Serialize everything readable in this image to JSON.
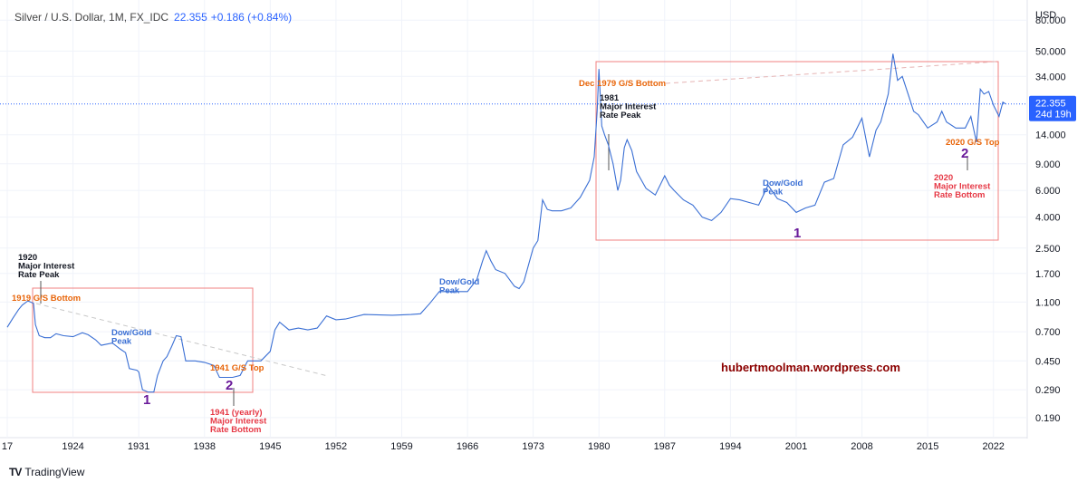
{
  "header": {
    "symbol": "Silver / U.S. Dollar, 1M, FX_IDC",
    "price": "22.355",
    "change": "+0.186 (+0.84%)"
  },
  "footer": {
    "brand": "TradingView",
    "logo": "TV"
  },
  "axis": {
    "currency": "USD",
    "price_box": "22.355",
    "countdown": "24d 19h"
  },
  "watermark": "hubertmoolman.wordpress.com",
  "colors": {
    "line": "#3a6fd4",
    "orange": "#e8650a",
    "red": "#e63946",
    "purple": "#6a1b9a",
    "box": "#f08080",
    "watermark": "#8b0000",
    "price_box": "#2962ff"
  },
  "annotations": {
    "a1920": "1920 Major Interest Rate Peak",
    "a1919": "1919 G/S Bottom",
    "dow1": "Dow/Gold Peak",
    "a1941top": "1941 G/S Top",
    "a1941": "1941 (yearly) Major Interest Rate Bottom",
    "num1a": "1",
    "num2a": "2",
    "dow2": "Dow/Gold Peak",
    "dec1979": "Dec 1979 G/S Bottom",
    "a1981": "1981 Major Interest Rate Peak",
    "dow3": "Dow/Gold Peak",
    "num1b": "1",
    "a2020top": "2020 G/S Top",
    "num2b": "2",
    "a2020": "2020 Major Interest Rate Bottom"
  },
  "chart_data": {
    "type": "line",
    "title": "Silver / U.S. Dollar, 1M, FX_IDC",
    "xlabel": "",
    "ylabel": "USD",
    "scale": "log",
    "xlim": [
      1917,
      2026
    ],
    "ylim": [
      0.15,
      100
    ],
    "x_ticks": [
      "17",
      "1924",
      "1931",
      "1938",
      "1945",
      "1952",
      "1959",
      "1966",
      "1973",
      "1980",
      "1987",
      "1994",
      "2001",
      "2008",
      "2015",
      "2022"
    ],
    "x_tick_years": [
      1917,
      1924,
      1931,
      1938,
      1945,
      1952,
      1959,
      1966,
      1973,
      1980,
      1987,
      1994,
      2001,
      2008,
      2015,
      2022
    ],
    "y_ticks": [
      "80.000",
      "50.000",
      "34.000",
      "22.355",
      "14.000",
      "9.000",
      "6.000",
      "4.000",
      "2.500",
      "1.700",
      "1.100",
      "0.700",
      "0.450",
      "0.290",
      "0.190"
    ],
    "y_tick_values": [
      80,
      50,
      34,
      22.355,
      14,
      9,
      6,
      4,
      2.5,
      1.7,
      1.1,
      0.7,
      0.45,
      0.29,
      0.19
    ],
    "grid": true,
    "last_price": 22.355,
    "series": [
      {
        "values": [
          [
            1917.0,
            0.75
          ],
          [
            1917.6,
            0.86
          ],
          [
            1918.2,
            0.98
          ],
          [
            1918.6,
            1.05
          ],
          [
            1919.2,
            1.12
          ],
          [
            1919.8,
            1.08
          ],
          [
            1920.0,
            0.78
          ],
          [
            1920.4,
            0.66
          ],
          [
            1921.0,
            0.64
          ],
          [
            1921.6,
            0.64
          ],
          [
            1922.2,
            0.68
          ],
          [
            1923.0,
            0.66
          ],
          [
            1924.0,
            0.65
          ],
          [
            1925.0,
            0.69
          ],
          [
            1925.6,
            0.67
          ],
          [
            1926.4,
            0.62
          ],
          [
            1927.0,
            0.57
          ],
          [
            1927.6,
            0.58
          ],
          [
            1928.2,
            0.59
          ],
          [
            1929.0,
            0.54
          ],
          [
            1929.6,
            0.51
          ],
          [
            1930.0,
            0.4
          ],
          [
            1930.8,
            0.39
          ],
          [
            1931.0,
            0.38
          ],
          [
            1931.4,
            0.29
          ],
          [
            1932.0,
            0.28
          ],
          [
            1932.6,
            0.28
          ],
          [
            1933.0,
            0.36
          ],
          [
            1933.6,
            0.45
          ],
          [
            1934.0,
            0.48
          ],
          [
            1934.5,
            0.56
          ],
          [
            1935.0,
            0.66
          ],
          [
            1935.5,
            0.65
          ],
          [
            1936.0,
            0.45
          ],
          [
            1937.0,
            0.45
          ],
          [
            1938.0,
            0.44
          ],
          [
            1939.0,
            0.42
          ],
          [
            1939.6,
            0.35
          ],
          [
            1940.0,
            0.35
          ],
          [
            1941.0,
            0.35
          ],
          [
            1941.8,
            0.36
          ],
          [
            1942.6,
            0.45
          ],
          [
            1943.0,
            0.45
          ],
          [
            1944.0,
            0.45
          ],
          [
            1945.0,
            0.52
          ],
          [
            1945.5,
            0.72
          ],
          [
            1946.0,
            0.81
          ],
          [
            1947.0,
            0.72
          ],
          [
            1948.0,
            0.74
          ],
          [
            1949.0,
            0.72
          ],
          [
            1950.0,
            0.74
          ],
          [
            1951.0,
            0.89
          ],
          [
            1952.0,
            0.84
          ],
          [
            1953.0,
            0.85
          ],
          [
            1955.0,
            0.91
          ],
          [
            1958.0,
            0.9
          ],
          [
            1960.0,
            0.91
          ],
          [
            1961.0,
            0.92
          ],
          [
            1962.0,
            1.08
          ],
          [
            1963.0,
            1.29
          ],
          [
            1964.0,
            1.29
          ],
          [
            1966.0,
            1.29
          ],
          [
            1967.0,
            1.55
          ],
          [
            1967.6,
            2.05
          ],
          [
            1968.0,
            2.4
          ],
          [
            1968.5,
            2.05
          ],
          [
            1969.0,
            1.8
          ],
          [
            1970.0,
            1.7
          ],
          [
            1971.0,
            1.4
          ],
          [
            1971.5,
            1.35
          ],
          [
            1972.0,
            1.5
          ],
          [
            1973.0,
            2.5
          ],
          [
            1973.5,
            2.8
          ],
          [
            1974.0,
            5.2
          ],
          [
            1974.5,
            4.5
          ],
          [
            1975.0,
            4.4
          ],
          [
            1976.0,
            4.4
          ],
          [
            1977.0,
            4.6
          ],
          [
            1978.0,
            5.4
          ],
          [
            1979.0,
            7.0
          ],
          [
            1979.5,
            10.0
          ],
          [
            1979.8,
            20.0
          ],
          [
            1980.0,
            38.0
          ],
          [
            1980.3,
            16.0
          ],
          [
            1980.6,
            14.0
          ],
          [
            1981.0,
            12.0
          ],
          [
            1981.5,
            9.0
          ],
          [
            1982.0,
            6.0
          ],
          [
            1982.3,
            7.0
          ],
          [
            1982.7,
            11.5
          ],
          [
            1983.0,
            13.0
          ],
          [
            1983.5,
            11.0
          ],
          [
            1984.0,
            8.0
          ],
          [
            1985.0,
            6.2
          ],
          [
            1986.0,
            5.6
          ],
          [
            1987.0,
            7.5
          ],
          [
            1987.5,
            6.5
          ],
          [
            1988.0,
            6.0
          ],
          [
            1989.0,
            5.2
          ],
          [
            1990.0,
            4.8
          ],
          [
            1991.0,
            4.0
          ],
          [
            1992.0,
            3.8
          ],
          [
            1993.0,
            4.3
          ],
          [
            1994.0,
            5.3
          ],
          [
            1995.0,
            5.2
          ],
          [
            1996.0,
            5.0
          ],
          [
            1997.0,
            4.8
          ],
          [
            1998.0,
            6.5
          ],
          [
            1999.0,
            5.3
          ],
          [
            2000.0,
            5.0
          ],
          [
            2001.0,
            4.3
          ],
          [
            2002.0,
            4.6
          ],
          [
            2003.0,
            4.8
          ],
          [
            2004.0,
            6.8
          ],
          [
            2005.0,
            7.2
          ],
          [
            2006.0,
            12.0
          ],
          [
            2007.0,
            13.5
          ],
          [
            2008.0,
            18.0
          ],
          [
            2008.8,
            10.0
          ],
          [
            2009.5,
            15.0
          ],
          [
            2010.0,
            17.0
          ],
          [
            2010.8,
            26.0
          ],
          [
            2011.3,
            48.0
          ],
          [
            2011.8,
            32.0
          ],
          [
            2012.3,
            34.0
          ],
          [
            2013.0,
            25.0
          ],
          [
            2013.5,
            20.0
          ],
          [
            2014.0,
            19.0
          ],
          [
            2015.0,
            15.5
          ],
          [
            2016.0,
            17.0
          ],
          [
            2016.5,
            20.0
          ],
          [
            2017.0,
            17.0
          ],
          [
            2018.0,
            15.5
          ],
          [
            2019.0,
            15.5
          ],
          [
            2019.6,
            18.5
          ],
          [
            2020.2,
            12.5
          ],
          [
            2020.6,
            28.0
          ],
          [
            2021.0,
            26.0
          ],
          [
            2021.5,
            27.0
          ],
          [
            2022.0,
            22.0
          ],
          [
            2022.6,
            18.5
          ],
          [
            2023.0,
            23.0
          ],
          [
            2023.3,
            22.355
          ]
        ]
      }
    ]
  }
}
